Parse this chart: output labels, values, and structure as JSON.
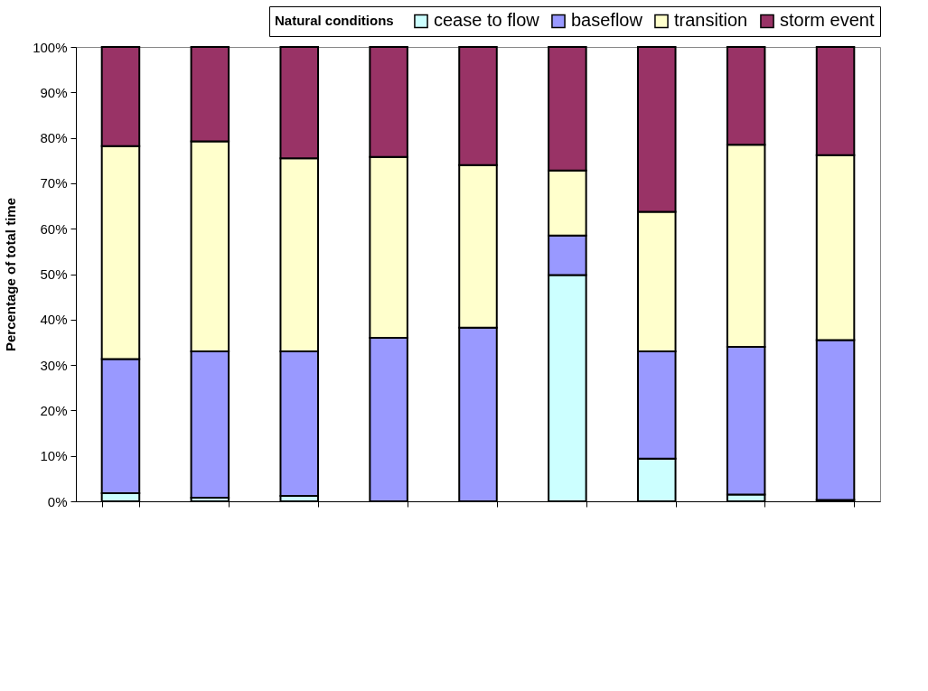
{
  "chart_data": {
    "type": "bar",
    "stacked": true,
    "ylabel": "Percentage of total time",
    "legend_title": "Natural conditions",
    "legend": "top",
    "grid": false,
    "categories": [
      null,
      null,
      null,
      null,
      null,
      null,
      null,
      null,
      null
    ],
    "series": [
      {
        "name": "cease to flow",
        "color": "#ccffff",
        "values": [
          1.8,
          0.8,
          1.2,
          0,
          0,
          49.8,
          9.4,
          1.5,
          0.3
        ]
      },
      {
        "name": "baseflow",
        "color": "#9999ff",
        "values": [
          29.5,
          32.2,
          31.8,
          36,
          38.2,
          8.7,
          23.6,
          32.5,
          35.2
        ]
      },
      {
        "name": "transition",
        "color": "#ffffcc",
        "values": [
          46.9,
          46.2,
          42.5,
          39.8,
          35.8,
          14.3,
          30.7,
          44.5,
          40.7
        ]
      },
      {
        "name": "storm event",
        "color": "#993366",
        "values": [
          21.8,
          20.8,
          24.5,
          24.2,
          26,
          27.2,
          36.3,
          21.5,
          23.8
        ]
      }
    ],
    "ylim": [
      0,
      100
    ],
    "yticks": [
      {
        "value": 0,
        "label": "0%"
      },
      {
        "value": 10,
        "label": "10%"
      },
      {
        "value": 20,
        "label": "20%"
      },
      {
        "value": 30,
        "label": "30%"
      },
      {
        "value": 40,
        "label": "40%"
      },
      {
        "value": 50,
        "label": "50%"
      },
      {
        "value": 60,
        "label": "60%"
      },
      {
        "value": 70,
        "label": "70%"
      },
      {
        "value": 80,
        "label": "80%"
      },
      {
        "value": 90,
        "label": "90%"
      },
      {
        "value": 100,
        "label": "100%"
      }
    ]
  }
}
